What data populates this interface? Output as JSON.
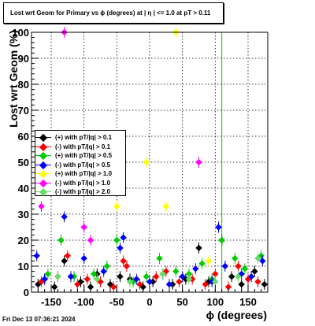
{
  "title": "Lost wrt Geom for Primary vs ϕ (degrees) at |  η  | <= 1.0 at pT > 0.11",
  "timestamp": "Fri Dec 13 07:36:21 2024",
  "chart_data": {
    "type": "scatter",
    "xlabel": "ϕ (degrees)",
    "ylabel": "Lost wrt Geom (%)",
    "xlim": [
      -180,
      180
    ],
    "ylim": [
      0,
      100
    ],
    "x_ticks": [
      -150,
      -100,
      -50,
      0,
      50,
      100,
      150
    ],
    "y_ticks": [
      0,
      10,
      20,
      30,
      40,
      50,
      60,
      70,
      80,
      90,
      100
    ],
    "grid": true,
    "legend_position": "middle-left",
    "vertical_line": {
      "x": 110,
      "color": "#00cc00"
    },
    "series": [
      {
        "name": "(+) with pT/|q| > 0.1",
        "color": "#000000",
        "x": [
          -170,
          -160,
          -145,
          -130,
          -120,
          -105,
          -90,
          -80,
          -60,
          -45,
          -30,
          -10,
          5,
          20,
          35,
          55,
          75,
          90,
          110,
          125,
          140,
          160,
          175
        ],
        "y": [
          3,
          5,
          2,
          12,
          6,
          4,
          2,
          7,
          3,
          6,
          5,
          2,
          4,
          7,
          3,
          5,
          17,
          4,
          20,
          6,
          3,
          8,
          3
        ]
      },
      {
        "name": "(-) with pT/|q| > 0.1",
        "color": "#ff0000",
        "x": [
          -165,
          -140,
          -125,
          -110,
          -95,
          -75,
          -55,
          -40,
          -35,
          -15,
          10,
          25,
          45,
          65,
          85,
          100,
          120,
          135,
          150,
          165
        ],
        "y": [
          4,
          6,
          14,
          3,
          5,
          4,
          2,
          12,
          10,
          3,
          6,
          8,
          4,
          5,
          3,
          7,
          2,
          10,
          5,
          4
        ]
      },
      {
        "name": "(+) with pT/|q| > 0.5",
        "color": "#00cc00",
        "x": [
          -155,
          -135,
          -115,
          -85,
          -65,
          -50,
          -25,
          -5,
          15,
          40,
          60,
          80,
          95,
          110,
          130,
          145,
          170
        ],
        "y": [
          7,
          20,
          6,
          7,
          10,
          20,
          4,
          6,
          13,
          8,
          7,
          11,
          5,
          20,
          13,
          9,
          14
        ]
      },
      {
        "name": "(-) with pT/|q| > 0.5",
        "color": "#0000ff",
        "x": [
          -172,
          -160,
          -130,
          -120,
          -100,
          -70,
          -45,
          -40,
          -20,
          0,
          30,
          50,
          70,
          95,
          105,
          115,
          140,
          155,
          172
        ],
        "y": [
          14,
          5,
          29,
          6,
          13,
          8,
          17,
          21,
          5,
          4,
          3,
          6,
          9,
          4,
          25,
          10,
          7,
          6,
          12
        ]
      },
      {
        "name": "(+) with pT/|q| > 1.0",
        "color": "#ffff00",
        "x": [
          -50,
          -5,
          25,
          40,
          90
        ],
        "y": [
          33,
          50,
          33,
          100,
          12
        ]
      },
      {
        "name": "(-) with pT/|q| > 1.0",
        "color": "#ff00ff",
        "x": [
          -165,
          -130,
          -100,
          -90,
          75
        ],
        "y": [
          33,
          100,
          25,
          20,
          50
        ]
      },
      {
        "name": "(-) with pT/|q| > 2.0",
        "color": "#66dd66",
        "x": [
          -140,
          -80,
          -30,
          20,
          60,
          100,
          135,
          165
        ],
        "y": [
          6,
          5,
          4,
          7,
          5,
          4,
          6,
          13
        ]
      }
    ]
  }
}
